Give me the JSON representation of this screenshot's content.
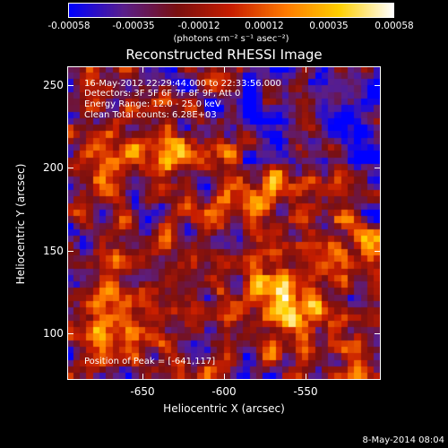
{
  "colorbar": {
    "tick_labels": [
      "-0.00058",
      "-0.00035",
      "-0.00012",
      "0.00012",
      "0.00035",
      "0.00058"
    ],
    "units": "(photons cm⁻² s⁻¹ asec⁻²)",
    "colormap": [
      "#0000ff",
      "#5a1f8c",
      "#7a1010",
      "#c81e00",
      "#ff7a00",
      "#ffd000",
      "#ffffff"
    ]
  },
  "plot": {
    "title": "Reconstructed RHESSI Image",
    "xlabel": "Heliocentric X (arcsec)",
    "ylabel": "Heliocentric Y (arcsec)",
    "x_ticks": [
      "-650",
      "-600",
      "-550"
    ],
    "y_ticks": [
      "250",
      "200",
      "150",
      "100"
    ],
    "x_range": [
      -698,
      -506
    ],
    "y_range": [
      76,
      268
    ]
  },
  "overlay": {
    "time_range": "16-May-2012 22:29:44.000 to 22:33:56.000",
    "detectors": "Detectors: 3F 5F 6F 7F 8F 9F, Att 0",
    "energy_range": "Energy Range: 12.0 - 25.0 keV",
    "clean_counts": "Clean    Total counts: 6.28E+03",
    "peak": "Position of Peak = [-641,117]"
  },
  "footer": {
    "timestamp": "8-May-2014 08:04"
  }
}
